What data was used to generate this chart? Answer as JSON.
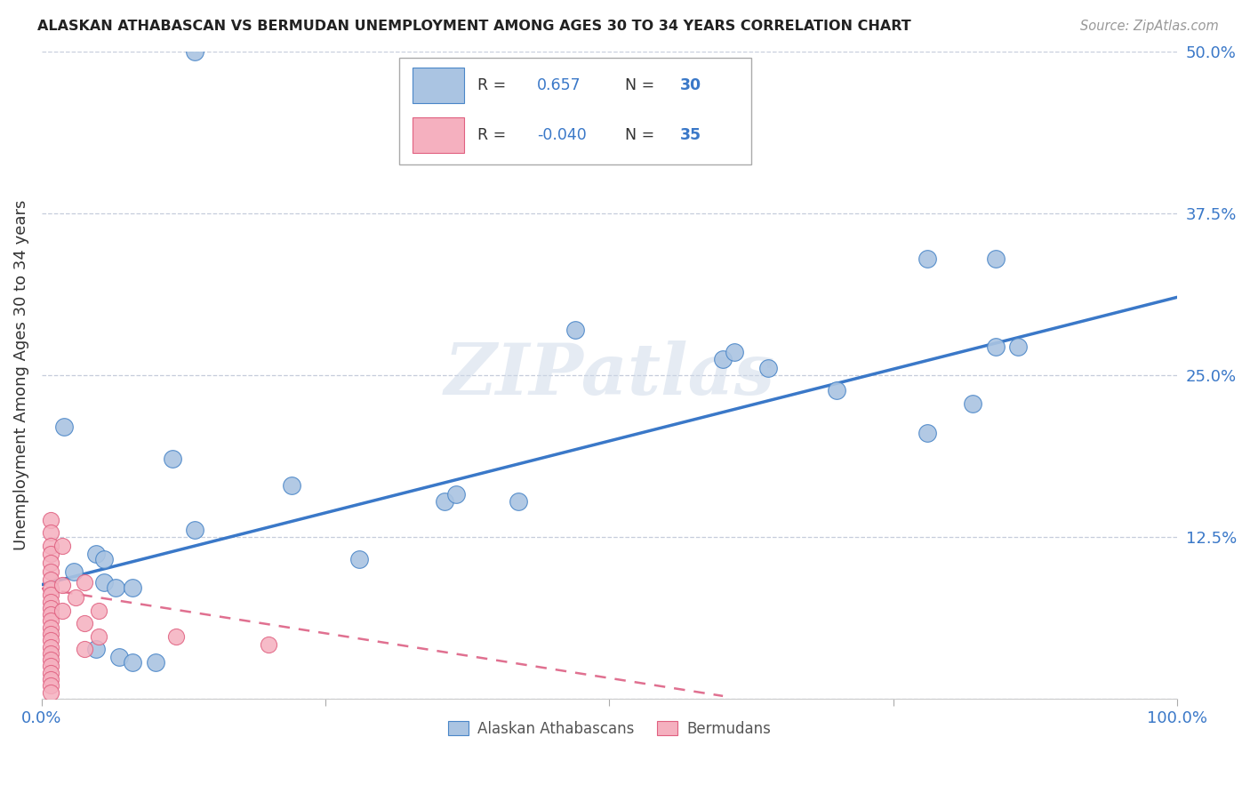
{
  "title": "ALASKAN ATHABASCAN VS BERMUDAN UNEMPLOYMENT AMONG AGES 30 TO 34 YEARS CORRELATION CHART",
  "source": "Source: ZipAtlas.com",
  "ylabel": "Unemployment Among Ages 30 to 34 years",
  "xlim": [
    0,
    1.0
  ],
  "ylim": [
    0,
    0.5
  ],
  "xticks": [
    0.0,
    0.25,
    0.5,
    0.75,
    1.0
  ],
  "xticklabels": [
    "0.0%",
    "",
    "",
    "",
    "100.0%"
  ],
  "yticks": [
    0.0,
    0.125,
    0.25,
    0.375,
    0.5
  ],
  "yticklabels": [
    "",
    "12.5%",
    "25.0%",
    "37.5%",
    "50.0%"
  ],
  "legend_labels": [
    "Alaskan Athabascans",
    "Bermudans"
  ],
  "blue_R": "0.657",
  "blue_N": "30",
  "pink_R": "-0.040",
  "pink_N": "35",
  "blue_fill": "#aac4e2",
  "pink_fill": "#f5b0bf",
  "blue_edge": "#4a86c8",
  "pink_edge": "#e06080",
  "line_blue": "#3a78c8",
  "line_pink": "#e07090",
  "watermark": "ZIPatlas",
  "blue_points": [
    [
      0.135,
      0.5
    ],
    [
      0.02,
      0.21
    ],
    [
      0.115,
      0.185
    ],
    [
      0.135,
      0.13
    ],
    [
      0.048,
      0.112
    ],
    [
      0.055,
      0.108
    ],
    [
      0.028,
      0.098
    ],
    [
      0.055,
      0.09
    ],
    [
      0.065,
      0.086
    ],
    [
      0.08,
      0.086
    ],
    [
      0.048,
      0.038
    ],
    [
      0.068,
      0.032
    ],
    [
      0.08,
      0.028
    ],
    [
      0.1,
      0.028
    ],
    [
      0.22,
      0.165
    ],
    [
      0.28,
      0.108
    ],
    [
      0.355,
      0.152
    ],
    [
      0.365,
      0.158
    ],
    [
      0.42,
      0.152
    ],
    [
      0.47,
      0.285
    ],
    [
      0.6,
      0.262
    ],
    [
      0.61,
      0.268
    ],
    [
      0.64,
      0.255
    ],
    [
      0.7,
      0.238
    ],
    [
      0.78,
      0.34
    ],
    [
      0.78,
      0.205
    ],
    [
      0.82,
      0.228
    ],
    [
      0.84,
      0.34
    ],
    [
      0.84,
      0.272
    ],
    [
      0.86,
      0.272
    ]
  ],
  "pink_points": [
    [
      0.008,
      0.138
    ],
    [
      0.008,
      0.128
    ],
    [
      0.008,
      0.118
    ],
    [
      0.008,
      0.112
    ],
    [
      0.008,
      0.105
    ],
    [
      0.008,
      0.098
    ],
    [
      0.008,
      0.092
    ],
    [
      0.008,
      0.085
    ],
    [
      0.008,
      0.08
    ],
    [
      0.008,
      0.075
    ],
    [
      0.008,
      0.07
    ],
    [
      0.008,
      0.065
    ],
    [
      0.008,
      0.06
    ],
    [
      0.008,
      0.055
    ],
    [
      0.008,
      0.05
    ],
    [
      0.008,
      0.045
    ],
    [
      0.008,
      0.04
    ],
    [
      0.008,
      0.035
    ],
    [
      0.008,
      0.03
    ],
    [
      0.008,
      0.025
    ],
    [
      0.008,
      0.02
    ],
    [
      0.008,
      0.015
    ],
    [
      0.008,
      0.01
    ],
    [
      0.008,
      0.005
    ],
    [
      0.018,
      0.118
    ],
    [
      0.018,
      0.088
    ],
    [
      0.018,
      0.068
    ],
    [
      0.03,
      0.078
    ],
    [
      0.038,
      0.09
    ],
    [
      0.038,
      0.058
    ],
    [
      0.038,
      0.038
    ],
    [
      0.05,
      0.068
    ],
    [
      0.05,
      0.048
    ],
    [
      0.118,
      0.048
    ],
    [
      0.2,
      0.042
    ]
  ],
  "blue_line_x": [
    0.0,
    1.0
  ],
  "blue_line_y": [
    0.088,
    0.31
  ],
  "pink_line_x": [
    0.0,
    0.6
  ],
  "pink_line_y": [
    0.085,
    0.002
  ]
}
